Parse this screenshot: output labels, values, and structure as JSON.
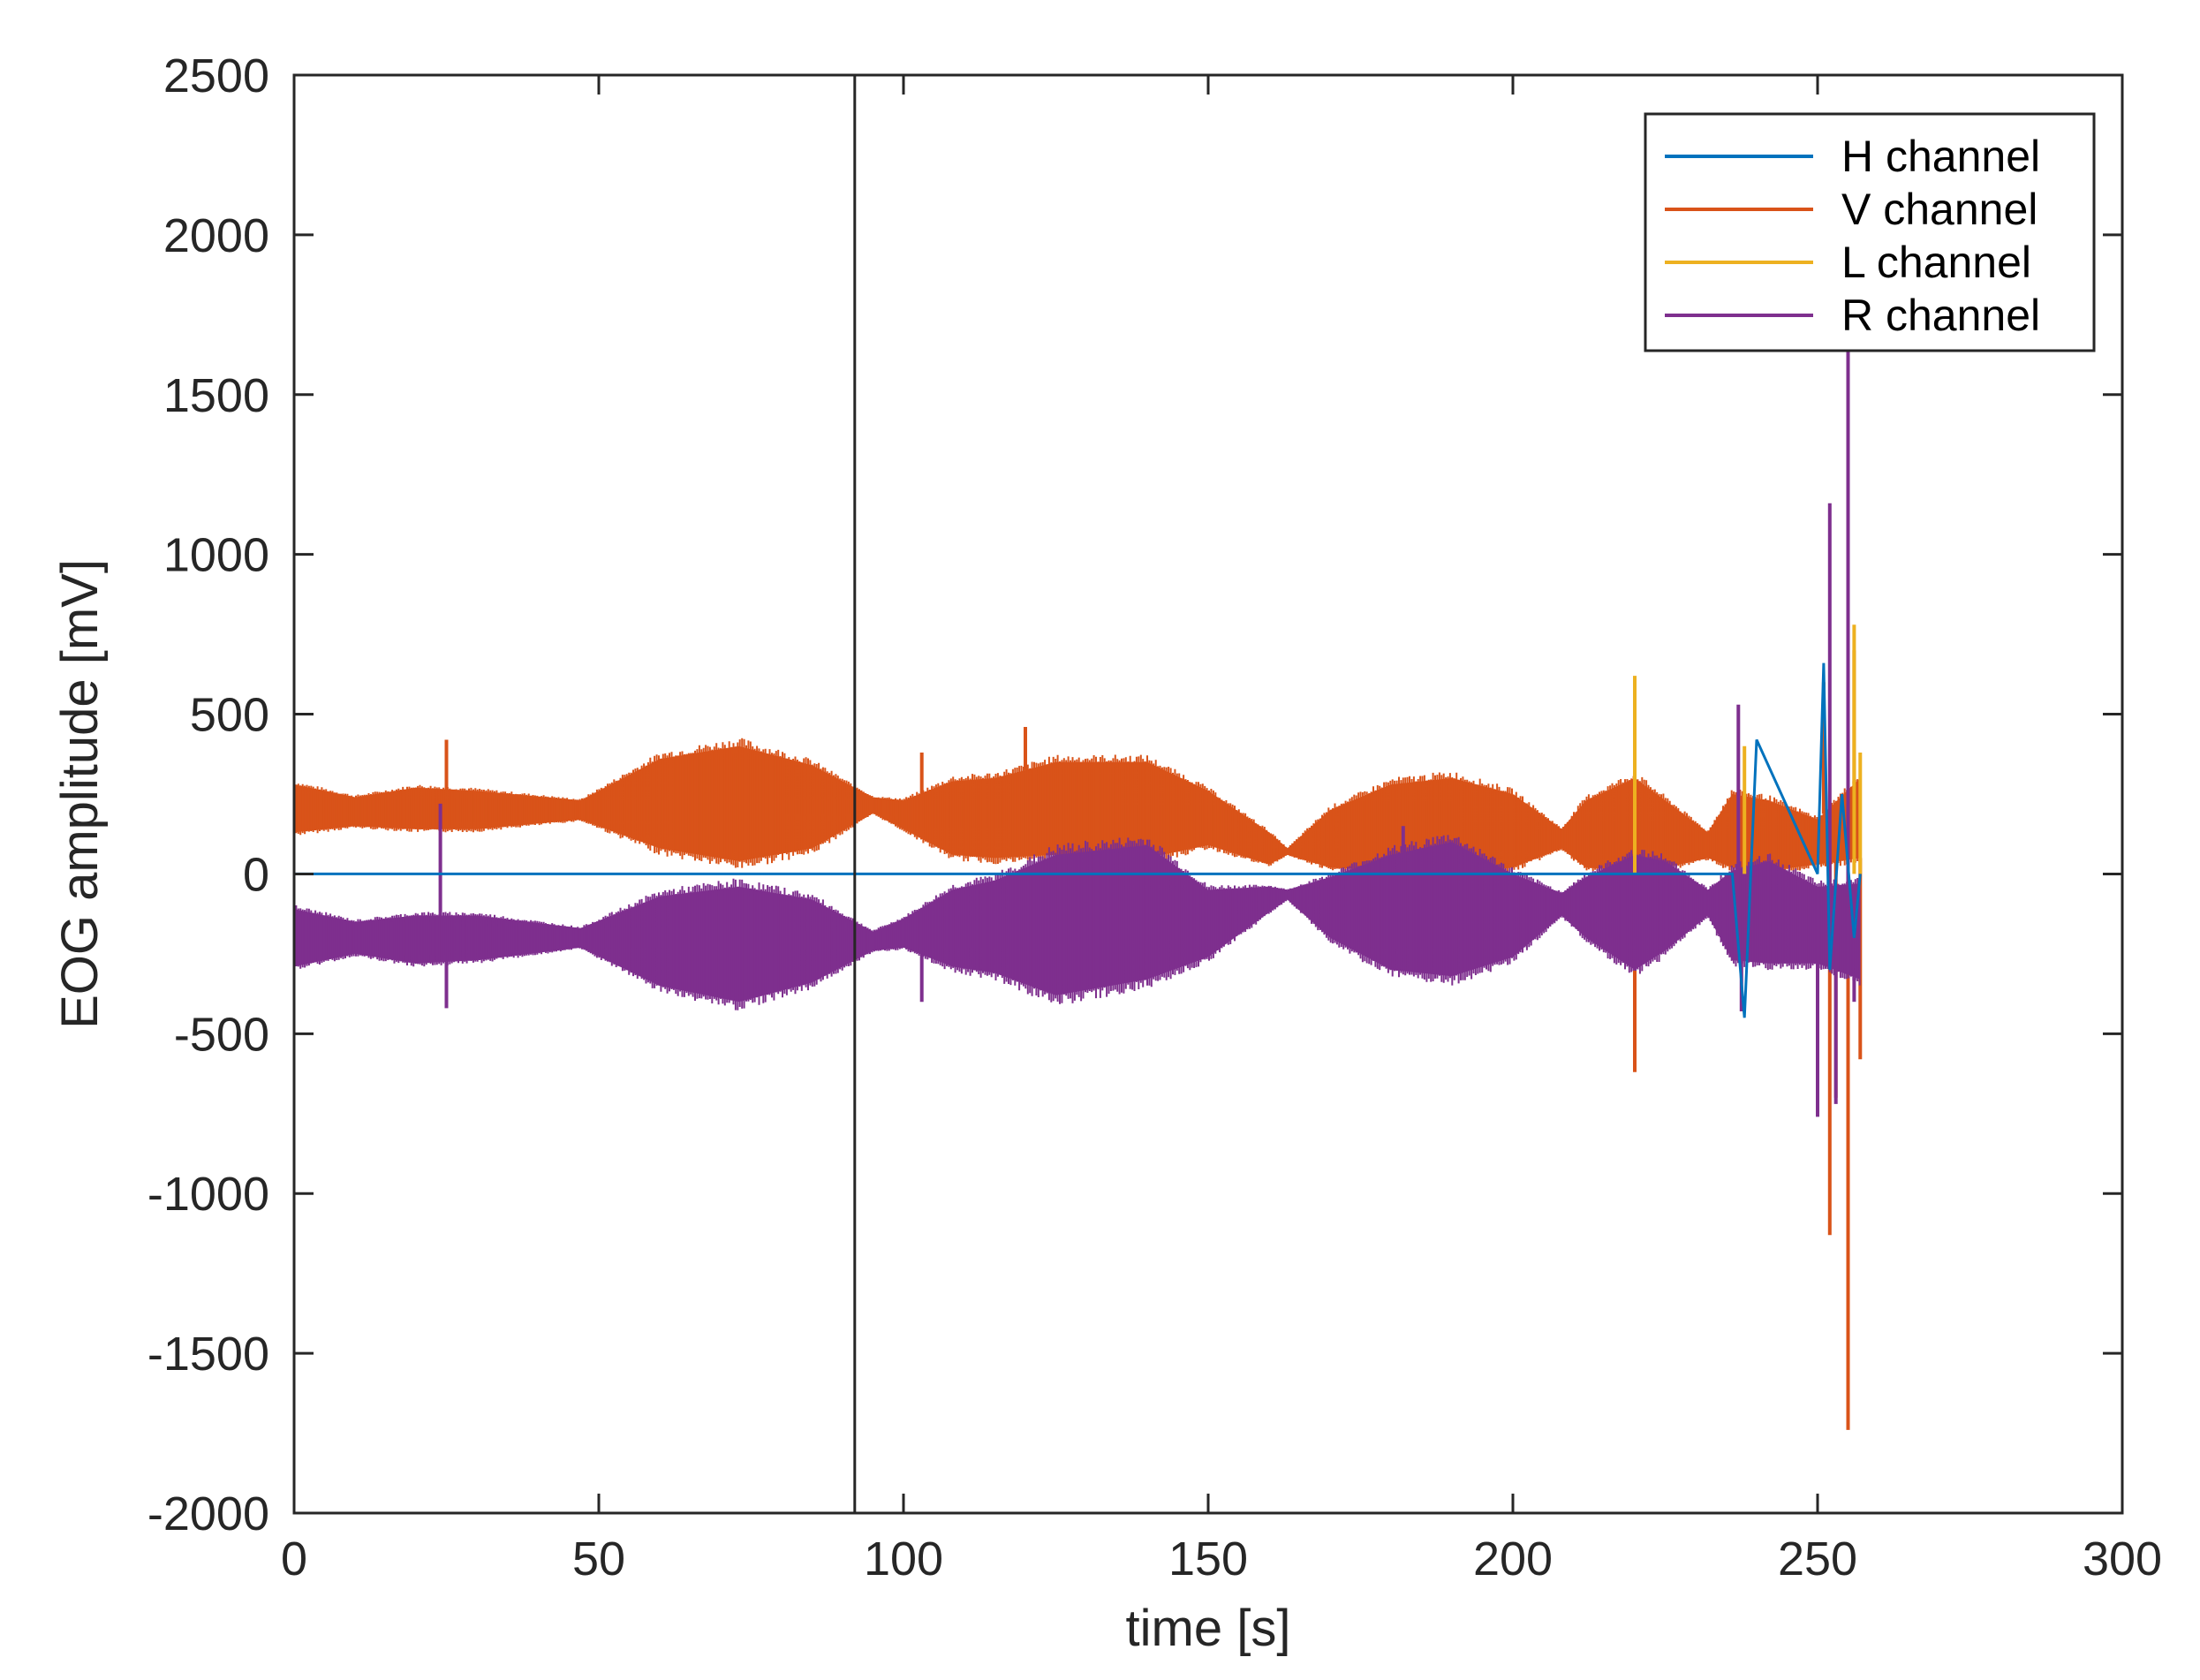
{
  "chart_data": {
    "type": "line",
    "title": "",
    "xlabel": "time [s]",
    "ylabel": "EOG amplitude [mV]",
    "xlim": [
      0,
      300
    ],
    "ylim": [
      -2000,
      2500
    ],
    "x_ticks": [
      0,
      50,
      100,
      150,
      200,
      250,
      300
    ],
    "x_tick_labels": [
      "0",
      "50",
      "100",
      "150",
      "200",
      "250",
      "300"
    ],
    "y_ticks": [
      -2000,
      -1500,
      -1000,
      -500,
      0,
      500,
      1000,
      1500,
      2000,
      2500
    ],
    "y_tick_labels": [
      "-2000",
      "-1500",
      "-1000",
      "-500",
      "0",
      "500",
      "1000",
      "1500",
      "2000",
      "2500"
    ],
    "grid": false,
    "legend_position": "top-right",
    "vertical_marker_x": 92,
    "series": [
      {
        "name": "H channel",
        "color": "#0072BD",
        "x": [
          0,
          30,
          60,
          90,
          110,
          112,
          116,
          140,
          170,
          200,
          209,
          215,
          230,
          236,
          238,
          240,
          250,
          251,
          252,
          254,
          256,
          257
        ],
        "y": [
          0,
          0,
          0,
          0,
          0,
          0,
          0,
          0,
          0,
          0,
          0,
          0,
          0,
          0,
          -450,
          420,
          0,
          660,
          -300,
          250,
          -200,
          0
        ]
      },
      {
        "name": "V channel",
        "color": "#D95319",
        "envelope": {
          "x": [
            0,
            10,
            20,
            30,
            47,
            60,
            73,
            85,
            95,
            100,
            108,
            115,
            125,
            140,
            150,
            160,
            163,
            170,
            180,
            190,
            200,
            208,
            212,
            220,
            225,
            232,
            236,
            242,
            250,
            257
          ],
          "upper": [
            280,
            240,
            270,
            260,
            230,
            360,
            400,
            340,
            240,
            230,
            290,
            300,
            350,
            350,
            260,
            130,
            80,
            200,
            280,
            300,
            250,
            140,
            230,
            300,
            230,
            130,
            250,
            230,
            170,
            300
          ],
          "lower": [
            130,
            150,
            140,
            140,
            170,
            80,
            40,
            80,
            190,
            140,
            60,
            50,
            60,
            50,
            90,
            30,
            60,
            20,
            10,
            0,
            20,
            80,
            20,
            10,
            20,
            50,
            20,
            10,
            30,
            50
          ]
        },
        "spikes": [
          {
            "x": 25,
            "y": 420
          },
          {
            "x": 103,
            "y": 380
          },
          {
            "x": 120,
            "y": 460
          },
          {
            "x": 182,
            "y": 150
          },
          {
            "x": 220,
            "y": -620
          },
          {
            "x": 237,
            "y": -200
          },
          {
            "x": 251,
            "y": 600
          },
          {
            "x": 252,
            "y": -1130
          },
          {
            "x": 253,
            "y": -700
          },
          {
            "x": 255,
            "y": -1740
          },
          {
            "x": 256,
            "y": 700
          },
          {
            "x": 257,
            "y": -580
          }
        ]
      },
      {
        "name": "L channel",
        "color": "#EDB120",
        "spikes": [
          {
            "x": 220,
            "y": 620
          },
          {
            "x": 238,
            "y": 400
          },
          {
            "x": 256,
            "y": 780
          },
          {
            "x": 257,
            "y": 380
          }
        ]
      },
      {
        "name": "R channel",
        "color": "#7E2F8E",
        "envelope": {
          "x": [
            0,
            10,
            20,
            30,
            47,
            60,
            73,
            85,
            95,
            100,
            108,
            115,
            125,
            140,
            150,
            160,
            163,
            170,
            180,
            190,
            200,
            208,
            212,
            220,
            225,
            232,
            236,
            242,
            250,
            257
          ],
          "upper": [
            -110,
            -150,
            -130,
            -130,
            -170,
            -70,
            -40,
            -80,
            -180,
            -140,
            -50,
            -20,
            60,
            90,
            -50,
            -40,
            -50,
            -10,
            60,
            100,
            0,
            -60,
            -10,
            60,
            40,
            -50,
            10,
            40,
            -40,
            -30
          ],
          "lower": [
            -290,
            -250,
            -280,
            -270,
            -230,
            -350,
            -400,
            -340,
            -240,
            -230,
            -290,
            -310,
            -380,
            -330,
            -260,
            -120,
            -80,
            -200,
            -300,
            -320,
            -260,
            -130,
            -200,
            -300,
            -240,
            -130,
            -270,
            -280,
            -280,
            -330
          ]
        },
        "spikes": [
          {
            "x": 16,
            "y": -150
          },
          {
            "x": 24,
            "y": 220
          },
          {
            "x": 25,
            "y": -420
          },
          {
            "x": 103,
            "y": -400
          },
          {
            "x": 182,
            "y": 150
          },
          {
            "x": 220,
            "y": 380
          },
          {
            "x": 237,
            "y": 530
          },
          {
            "x": 237.5,
            "y": -430
          },
          {
            "x": 250,
            "y": -760
          },
          {
            "x": 252,
            "y": 1160
          },
          {
            "x": 253,
            "y": -720
          },
          {
            "x": 255,
            "y": 1700
          },
          {
            "x": 256,
            "y": -400
          }
        ]
      }
    ]
  }
}
